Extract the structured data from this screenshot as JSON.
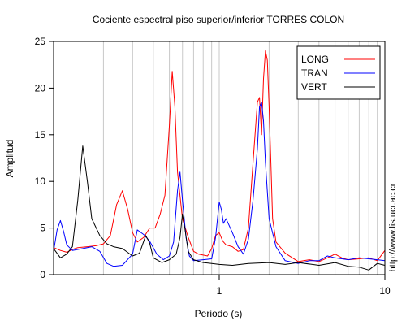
{
  "chart_data": {
    "type": "line",
    "title": "Cociente espectral piso superior/inferior  TORRES COLON",
    "xlabel": "Periodo (s)",
    "ylabel": "Amplitud",
    "x_scale": "log",
    "xlim": [
      0.1,
      10
    ],
    "ylim": [
      0,
      25
    ],
    "x_ticks": [
      1,
      10
    ],
    "x_tick_labels": [
      "1",
      "10"
    ],
    "y_ticks": [
      0,
      5,
      10,
      15,
      20,
      25
    ],
    "y_tick_labels": [
      "0",
      "5",
      "10",
      "15",
      "20",
      "25"
    ],
    "grid": "vertical",
    "legend_position": "top-right",
    "watermark": "http://www.lis.ucr.ac.cr",
    "series": [
      {
        "name": "LONG",
        "color": "#ff0000",
        "points": [
          [
            0.1,
            2.9
          ],
          [
            0.11,
            2.6
          ],
          [
            0.12,
            2.4
          ],
          [
            0.13,
            2.7
          ],
          [
            0.14,
            2.9
          ],
          [
            0.16,
            3.0
          ],
          [
            0.18,
            3.1
          ],
          [
            0.2,
            3.3
          ],
          [
            0.22,
            4.2
          ],
          [
            0.24,
            7.5
          ],
          [
            0.26,
            9.0
          ],
          [
            0.28,
            7.0
          ],
          [
            0.3,
            4.5
          ],
          [
            0.32,
            3.5
          ],
          [
            0.35,
            4.0
          ],
          [
            0.38,
            5.0
          ],
          [
            0.41,
            5.0
          ],
          [
            0.44,
            6.5
          ],
          [
            0.47,
            8.5
          ],
          [
            0.5,
            16.0
          ],
          [
            0.52,
            21.8
          ],
          [
            0.54,
            18.0
          ],
          [
            0.56,
            11.0
          ],
          [
            0.6,
            6.0
          ],
          [
            0.65,
            4.0
          ],
          [
            0.7,
            2.5
          ],
          [
            0.75,
            2.2
          ],
          [
            0.8,
            2.1
          ],
          [
            0.85,
            2.0
          ],
          [
            0.9,
            2.8
          ],
          [
            0.95,
            4.2
          ],
          [
            1.0,
            4.5
          ],
          [
            1.05,
            3.6
          ],
          [
            1.1,
            3.2
          ],
          [
            1.2,
            3.0
          ],
          [
            1.3,
            2.5
          ],
          [
            1.4,
            2.7
          ],
          [
            1.5,
            5.0
          ],
          [
            1.6,
            12.0
          ],
          [
            1.7,
            18.5
          ],
          [
            1.75,
            19.0
          ],
          [
            1.8,
            15.0
          ],
          [
            1.85,
            21.0
          ],
          [
            1.9,
            24.0
          ],
          [
            1.95,
            23.0
          ],
          [
            2.0,
            18.0
          ],
          [
            2.05,
            12.0
          ],
          [
            2.1,
            6.0
          ],
          [
            2.2,
            3.5
          ],
          [
            2.5,
            2.3
          ],
          [
            3.0,
            1.4
          ],
          [
            3.5,
            1.6
          ],
          [
            4.0,
            1.4
          ],
          [
            4.5,
            1.8
          ],
          [
            5.0,
            2.2
          ],
          [
            5.5,
            1.8
          ],
          [
            6.0,
            1.6
          ],
          [
            7.0,
            1.7
          ],
          [
            8.0,
            1.8
          ],
          [
            9.0,
            1.5
          ],
          [
            10.0,
            2.6
          ]
        ]
      },
      {
        "name": "TRAN",
        "color": "#0000ff",
        "points": [
          [
            0.1,
            2.5
          ],
          [
            0.105,
            4.8
          ],
          [
            0.11,
            5.8
          ],
          [
            0.115,
            4.6
          ],
          [
            0.12,
            3.2
          ],
          [
            0.13,
            2.6
          ],
          [
            0.15,
            2.8
          ],
          [
            0.17,
            3.0
          ],
          [
            0.19,
            2.5
          ],
          [
            0.21,
            1.2
          ],
          [
            0.23,
            0.9
          ],
          [
            0.26,
            1.0
          ],
          [
            0.3,
            2.2
          ],
          [
            0.32,
            4.8
          ],
          [
            0.35,
            4.3
          ],
          [
            0.38,
            3.6
          ],
          [
            0.42,
            2.2
          ],
          [
            0.46,
            1.6
          ],
          [
            0.5,
            2.0
          ],
          [
            0.53,
            3.5
          ],
          [
            0.56,
            9.0
          ],
          [
            0.58,
            11.0
          ],
          [
            0.6,
            8.0
          ],
          [
            0.63,
            4.0
          ],
          [
            0.66,
            2.0
          ],
          [
            0.7,
            1.5
          ],
          [
            0.8,
            1.6
          ],
          [
            0.9,
            1.7
          ],
          [
            0.95,
            4.0
          ],
          [
            1.0,
            7.8
          ],
          [
            1.03,
            7.0
          ],
          [
            1.06,
            5.5
          ],
          [
            1.1,
            6.0
          ],
          [
            1.2,
            4.5
          ],
          [
            1.3,
            3.0
          ],
          [
            1.4,
            2.2
          ],
          [
            1.5,
            3.8
          ],
          [
            1.6,
            8.0
          ],
          [
            1.7,
            13.5
          ],
          [
            1.75,
            18.0
          ],
          [
            1.8,
            18.5
          ],
          [
            1.85,
            16.5
          ],
          [
            1.9,
            12.0
          ],
          [
            2.0,
            6.0
          ],
          [
            2.2,
            3.0
          ],
          [
            2.5,
            1.5
          ],
          [
            3.0,
            1.2
          ],
          [
            3.5,
            1.5
          ],
          [
            4.0,
            1.5
          ],
          [
            4.5,
            2.0
          ],
          [
            5.0,
            1.8
          ],
          [
            6.0,
            1.6
          ],
          [
            7.0,
            1.8
          ],
          [
            8.0,
            1.7
          ],
          [
            9.0,
            1.6
          ],
          [
            10.0,
            1.5
          ]
        ]
      },
      {
        "name": "VERT",
        "color": "#000000",
        "points": [
          [
            0.1,
            2.8
          ],
          [
            0.11,
            1.8
          ],
          [
            0.12,
            2.2
          ],
          [
            0.13,
            3.0
          ],
          [
            0.14,
            8.0
          ],
          [
            0.15,
            13.8
          ],
          [
            0.16,
            10.0
          ],
          [
            0.17,
            6.0
          ],
          [
            0.19,
            4.2
          ],
          [
            0.21,
            3.3
          ],
          [
            0.23,
            3.0
          ],
          [
            0.26,
            2.8
          ],
          [
            0.3,
            2.0
          ],
          [
            0.33,
            2.3
          ],
          [
            0.36,
            4.2
          ],
          [
            0.38,
            3.4
          ],
          [
            0.4,
            1.8
          ],
          [
            0.45,
            1.3
          ],
          [
            0.5,
            1.6
          ],
          [
            0.55,
            2.2
          ],
          [
            0.58,
            4.0
          ],
          [
            0.6,
            6.5
          ],
          [
            0.62,
            5.0
          ],
          [
            0.65,
            2.5
          ],
          [
            0.7,
            1.6
          ],
          [
            0.8,
            1.3
          ],
          [
            0.9,
            1.2
          ],
          [
            1.0,
            1.1
          ],
          [
            1.2,
            1.0
          ],
          [
            1.5,
            1.2
          ],
          [
            2.0,
            1.3
          ],
          [
            2.5,
            1.1
          ],
          [
            3.0,
            1.3
          ],
          [
            4.0,
            1.0
          ],
          [
            5.0,
            1.3
          ],
          [
            6.0,
            0.9
          ],
          [
            7.0,
            0.8
          ],
          [
            8.0,
            0.5
          ],
          [
            9.0,
            1.2
          ],
          [
            10.0,
            1.0
          ]
        ]
      }
    ]
  }
}
